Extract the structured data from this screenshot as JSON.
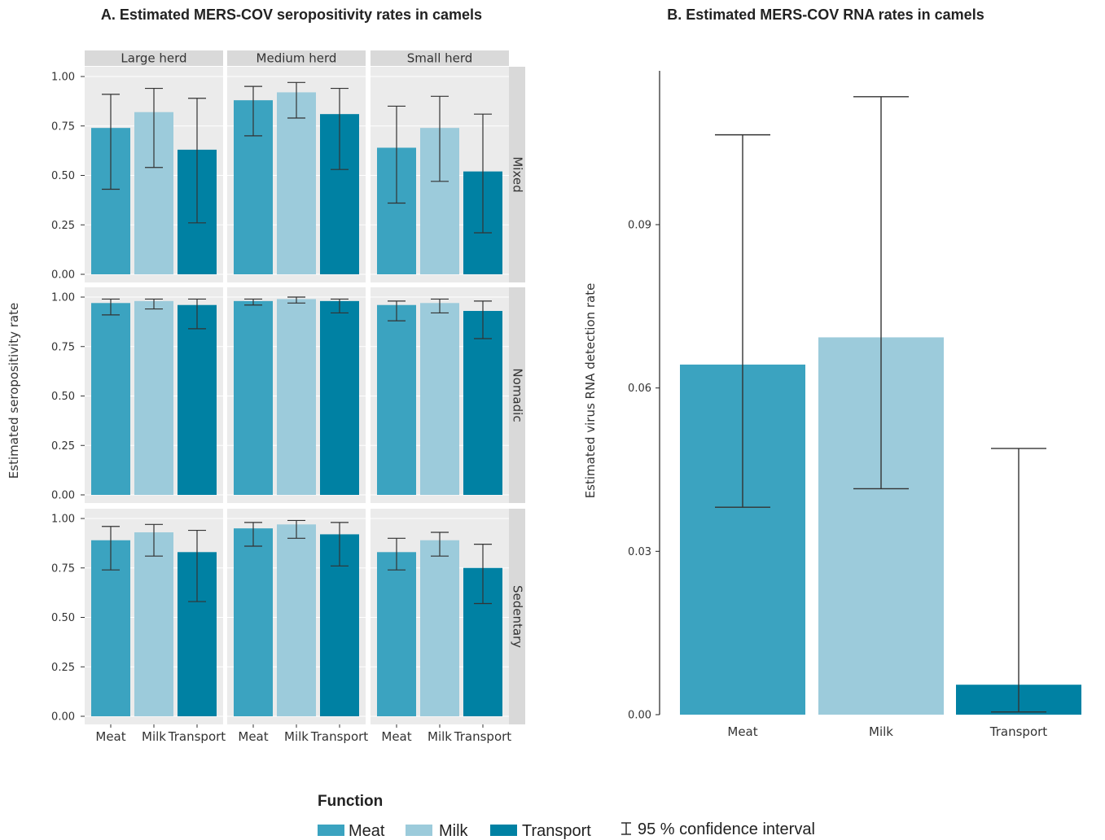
{
  "colors": {
    "Meat": "#3ba3c0",
    "Milk": "#9ccbdb",
    "Transport": "#0081a3",
    "panel_bg": "#ebebeb",
    "strip_bg": "#d9d9d9",
    "gridline": "#ffffff",
    "errorbar": "#333333"
  },
  "chart_data": [
    {
      "type": "bar",
      "title": "A. Estimated MERS-COV seropositivity rates in camels",
      "ylabel": "Estimated seropositivity rate",
      "ylim": [
        0,
        1.05
      ],
      "yticks": [
        "0.00",
        "0.25",
        "0.50",
        "0.75",
        "1.00"
      ],
      "categories": [
        "Meat",
        "Milk",
        "Transport"
      ],
      "facet_columns": [
        "Large herd",
        "Medium herd",
        "Small herd"
      ],
      "facet_rows": [
        "Mixed",
        "Nomadic",
        "Sedentary"
      ],
      "panels": [
        {
          "row": "Mixed",
          "col": "Large herd",
          "values": [
            0.74,
            0.82,
            0.63
          ],
          "lower": [
            0.43,
            0.54,
            0.26
          ],
          "upper": [
            0.91,
            0.94,
            0.89
          ]
        },
        {
          "row": "Mixed",
          "col": "Medium herd",
          "values": [
            0.88,
            0.92,
            0.81
          ],
          "lower": [
            0.7,
            0.79,
            0.53
          ],
          "upper": [
            0.95,
            0.97,
            0.94
          ]
        },
        {
          "row": "Mixed",
          "col": "Small herd",
          "values": [
            0.64,
            0.74,
            0.52
          ],
          "lower": [
            0.36,
            0.47,
            0.21
          ],
          "upper": [
            0.85,
            0.9,
            0.81
          ]
        },
        {
          "row": "Nomadic",
          "col": "Large herd",
          "values": [
            0.97,
            0.98,
            0.96
          ],
          "lower": [
            0.91,
            0.94,
            0.84
          ],
          "upper": [
            0.99,
            0.99,
            0.99
          ]
        },
        {
          "row": "Nomadic",
          "col": "Medium herd",
          "values": [
            0.98,
            0.99,
            0.98
          ],
          "lower": [
            0.96,
            0.97,
            0.92
          ],
          "upper": [
            0.99,
            1.0,
            0.99
          ]
        },
        {
          "row": "Nomadic",
          "col": "Small herd",
          "values": [
            0.96,
            0.97,
            0.93
          ],
          "lower": [
            0.88,
            0.92,
            0.79
          ],
          "upper": [
            0.98,
            0.99,
            0.98
          ]
        },
        {
          "row": "Sedentary",
          "col": "Large herd",
          "values": [
            0.89,
            0.93,
            0.83
          ],
          "lower": [
            0.74,
            0.81,
            0.58
          ],
          "upper": [
            0.96,
            0.97,
            0.94
          ]
        },
        {
          "row": "Sedentary",
          "col": "Medium herd",
          "values": [
            0.95,
            0.97,
            0.92
          ],
          "lower": [
            0.86,
            0.9,
            0.76
          ],
          "upper": [
            0.98,
            0.99,
            0.98
          ]
        },
        {
          "row": "Sedentary",
          "col": "Small herd",
          "values": [
            0.83,
            0.89,
            0.75
          ],
          "lower": [
            0.74,
            0.81,
            0.57
          ],
          "upper": [
            0.9,
            0.93,
            0.87
          ]
        }
      ]
    },
    {
      "type": "bar",
      "title": "B. Estimated MERS-COV RNA rates in camels",
      "ylabel": "Estimated virus RNA detection rate",
      "ylim": [
        0,
        0.119
      ],
      "yticks": [
        "0.00",
        "0.03",
        "0.06",
        "0.09"
      ],
      "categories": [
        "Meat",
        "Milk",
        "Transport"
      ],
      "values": [
        0.0643,
        0.0693,
        0.0055
      ],
      "lower": [
        0.0381,
        0.0415,
        0.0005
      ],
      "upper": [
        0.1065,
        0.1135,
        0.0489
      ]
    }
  ],
  "legend": {
    "title": "Function",
    "items": [
      "Meat",
      "Milk",
      "Transport"
    ],
    "ci_label": "95 % confidence interval"
  }
}
